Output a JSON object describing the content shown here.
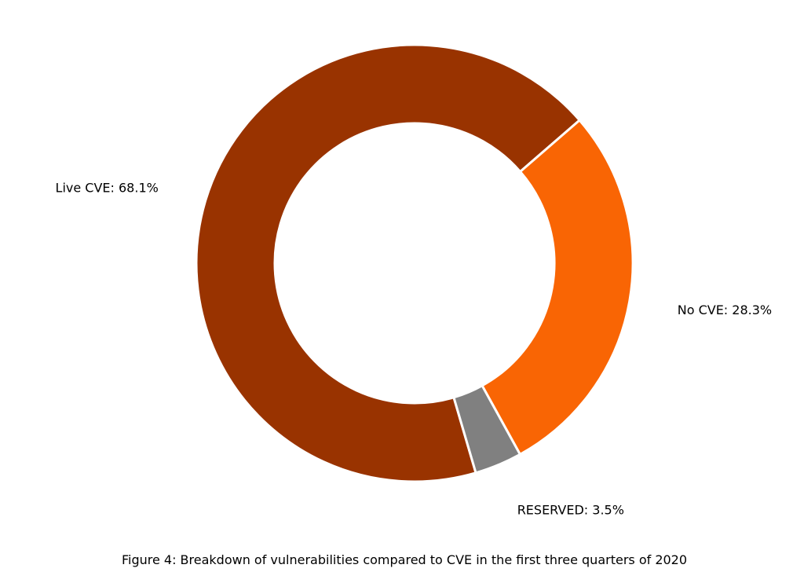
{
  "caption": "Figure 4: Breakdown of vulnerabilities compared to CVE in the first three quarters of 2020",
  "chart_data": {
    "type": "pie",
    "variant": "donut",
    "title": "",
    "categories": [
      "Live CVE",
      "No CVE",
      "RESERVED"
    ],
    "values": [
      68.1,
      28.3,
      3.5
    ],
    "unit": "%",
    "labels": [
      "Live CVE: 68.1%",
      "No CVE: 28.3%",
      "RESERVED: 3.5%"
    ],
    "colors": [
      "#993300",
      "#f96504",
      "#808080"
    ],
    "slice_edge_color": "#ffffff",
    "legend": "none",
    "label_placement": "outside"
  }
}
